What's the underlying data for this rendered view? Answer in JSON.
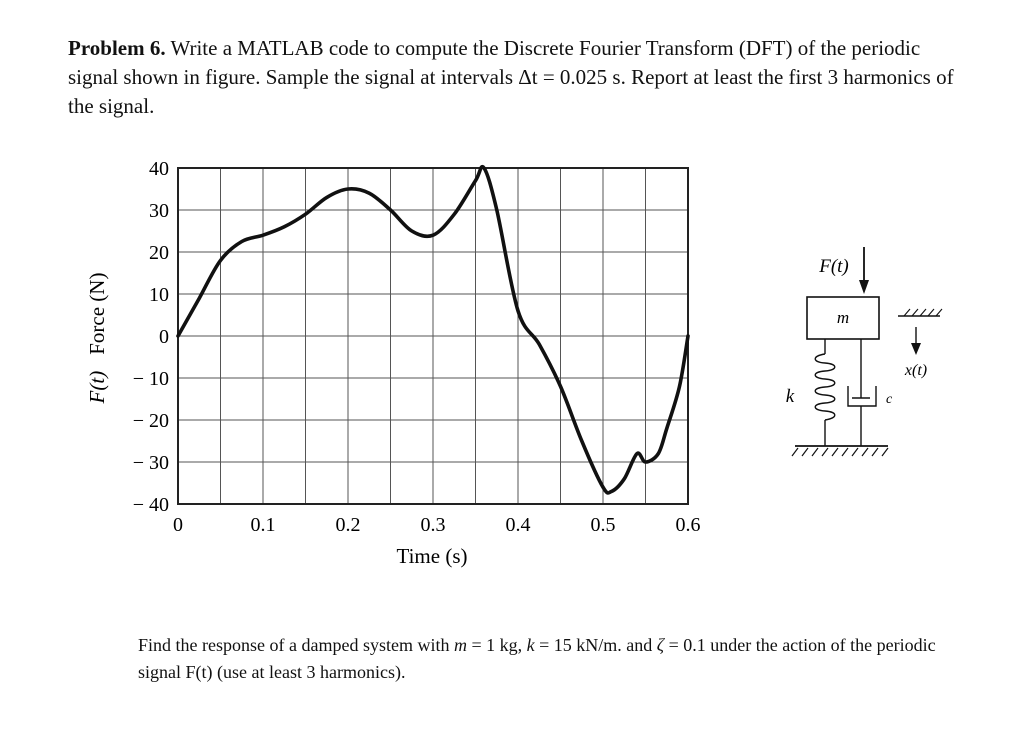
{
  "problem": {
    "label": "Problem 6.",
    "text": "Write a MATLAB code to compute the Discrete Fourier Transform (DFT) of the periodic signal shown in figure.  Sample the signal at intervals Δt = 0.025 s.  Report at least the first 3 harmonics of the signal."
  },
  "chart_data": {
    "type": "line",
    "xlabel": "Time (s)",
    "ylabel_symbol": "F(t)",
    "ylabel": "Force (N)",
    "xlim": [
      0,
      0.6
    ],
    "ylim": [
      -40,
      40
    ],
    "grid": true,
    "x_ticks": [
      "0",
      "0.1",
      "0.2",
      "0.3",
      "0.4",
      "0.5",
      "0.6"
    ],
    "y_ticks": [
      "40",
      "30",
      "20",
      "10",
      "0",
      "− 10",
      "− 20",
      "− 30",
      "− 40"
    ],
    "series": [
      {
        "x": [
          0,
          0.025,
          0.05,
          0.075,
          0.1,
          0.125,
          0.15,
          0.175,
          0.2,
          0.225,
          0.25,
          0.275,
          0.3,
          0.325,
          0.35,
          0.36,
          0.375,
          0.4,
          0.425,
          0.45,
          0.475,
          0.5,
          0.51,
          0.525,
          0.54,
          0.55,
          0.565,
          0.575,
          0.59,
          0.6
        ],
        "y": [
          0,
          9,
          18,
          22.5,
          24,
          26,
          29,
          33,
          35,
          34,
          30,
          25,
          24,
          29,
          37,
          40,
          30,
          6,
          -2,
          -12,
          -25,
          -36,
          -37,
          -34,
          -28,
          -30,
          -28,
          -22,
          -12,
          0
        ]
      }
    ]
  },
  "diagram": {
    "force": "F(t)",
    "mass": "m",
    "spring": "k",
    "damper": "c",
    "displacement": "x(t)"
  },
  "question": {
    "pre": "Find the response of a damped system with ",
    "m_sym": "m",
    "m_val": " = 1 kg, ",
    "k_sym": "k",
    "k_val": " = 15 kN/m. and ",
    "z_sym": "ζ",
    "z_val": " = 0.1 under the action of the periodic signal ",
    "f_sym": "F(t)",
    "post": " (use at least 3 harmonics)."
  }
}
